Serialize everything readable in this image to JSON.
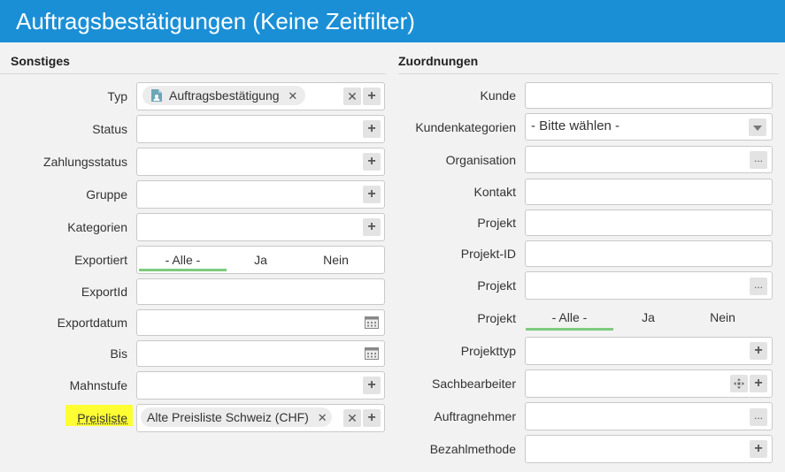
{
  "title": "Auftragsbestätigungen (Keine Zeitfilter)",
  "left": {
    "heading": "Sonstiges",
    "typ": {
      "label": "Typ",
      "tag": "Auftragsbestätigung",
      "tag_icon": "document-person-icon"
    },
    "status": {
      "label": "Status"
    },
    "zahlungsstatus": {
      "label": "Zahlungsstatus"
    },
    "gruppe": {
      "label": "Gruppe"
    },
    "kategorien": {
      "label": "Kategorien"
    },
    "exportiert": {
      "label": "Exportiert",
      "options": [
        "- Alle -",
        "Ja",
        "Nein"
      ],
      "selected": "- Alle -"
    },
    "exportid": {
      "label": "ExportId"
    },
    "exportdatum": {
      "label": "Exportdatum"
    },
    "bis": {
      "label": "Bis"
    },
    "mahnstufe": {
      "label": "Mahnstufe"
    },
    "preisliste": {
      "label": "Preisliste",
      "tag": "Alte Preisliste Schweiz (CHF)",
      "highlight_color": "#ffff33"
    }
  },
  "right": {
    "heading": "Zuordnungen",
    "kunde": {
      "label": "Kunde"
    },
    "kundenkategorien": {
      "label": "Kundenkategorien",
      "value": "- Bitte wählen -"
    },
    "organisation": {
      "label": "Organisation"
    },
    "kontakt": {
      "label": "Kontakt"
    },
    "projekt1": {
      "label": "Projekt"
    },
    "projekt_id": {
      "label": "Projekt-ID"
    },
    "projekt2": {
      "label": "Projekt"
    },
    "projekt3": {
      "label": "Projekt",
      "options": [
        "- Alle -",
        "Ja",
        "Nein"
      ],
      "selected": "- Alle -"
    },
    "projekttyp": {
      "label": "Projekttyp"
    },
    "sachbearbeiter": {
      "label": "Sachbearbeiter"
    },
    "auftragnehmer": {
      "label": "Auftragnehmer"
    },
    "bezahlmethode": {
      "label": "Bezahlmethode"
    }
  },
  "icons": {
    "plus": "+",
    "clear": "✕",
    "more": "...",
    "calendar": "calendar-icon",
    "move": "move-icon"
  },
  "colors": {
    "header": "#1a8fd6",
    "active_underline": "#7ccb7c",
    "highlight": "#ffff33"
  }
}
